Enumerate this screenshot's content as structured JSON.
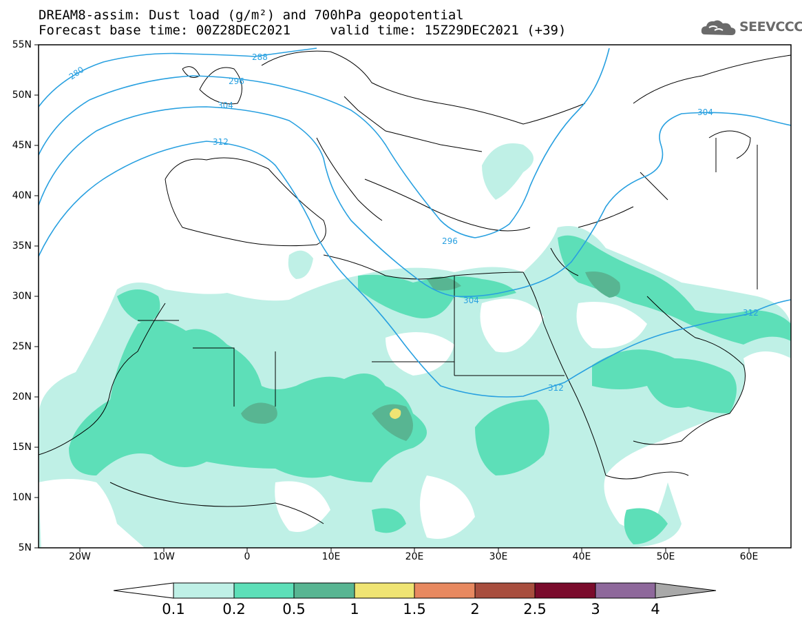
{
  "title_line1": "DREAM8-assim: Dust load (g/m²) and 700hPa geopotential",
  "title_line2": "Forecast base time: 00Z28DEC2021     valid time: 15Z29DEC2021 (+39)",
  "logo_text": "SEEVCCC",
  "colors": {
    "dust_0_1": "#bff0e6",
    "dust_0_2": "#5ddfb8",
    "dust_0_5": "#58b592",
    "dust_1": "#efe473",
    "dust_1_5": "#e88960",
    "dust_2": "#a84e3e",
    "dust_2_5": "#7a0b2c",
    "dust_3": "#8e689b",
    "dust_4": "#a9a9a9",
    "contour": "#28a0e0",
    "coast": "#000000"
  },
  "axes": {
    "lat_labels": [
      "55N",
      "50N",
      "45N",
      "40N",
      "35N",
      "30N",
      "25N",
      "20N",
      "15N",
      "10N",
      "5N"
    ],
    "lon_labels": [
      "20W",
      "10W",
      "0",
      "10E",
      "20E",
      "30E",
      "40E",
      "50E",
      "60E"
    ]
  },
  "map_data": {
    "type": "geographic-field",
    "lon_range": [
      -25,
      65
    ],
    "lat_range": [
      5,
      55
    ],
    "contour_labels": [
      "280",
      "288",
      "296",
      "304",
      "312",
      "296",
      "304",
      "312",
      "304"
    ],
    "colorbar": {
      "levels": [
        "0.1",
        "0.2",
        "0.5",
        "1",
        "1.5",
        "2",
        "2.5",
        "3",
        "4"
      ],
      "unit": "g/m²"
    }
  }
}
